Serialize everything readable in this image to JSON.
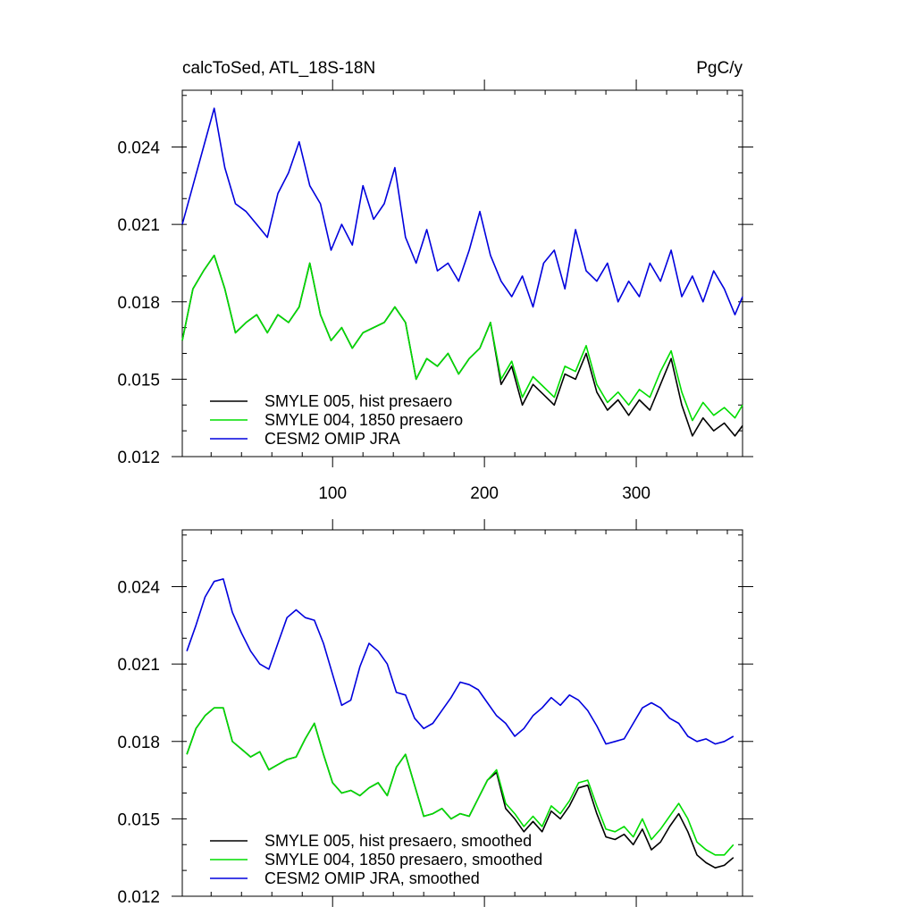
{
  "chart_data": [
    {
      "type": "line",
      "title_left": "calcToSed, ATL_18S-18N",
      "title_right": "PgC/y",
      "xlim": [
        1,
        370
      ],
      "ylim": [
        0.012,
        0.0262
      ],
      "xticks": [
        100,
        200,
        300
      ],
      "xtick_labels": [
        "100",
        "200",
        "300"
      ],
      "yticks": [
        0.012,
        0.015,
        0.018,
        0.021,
        0.024
      ],
      "ytick_labels": [
        "0.012",
        "0.015",
        "0.018",
        "0.021",
        "0.024"
      ],
      "legend_position": "bottom-left",
      "series": [
        {
          "name": "SMYLE 005, hist presaero",
          "color": "#000000",
          "x": [
            1,
            8,
            15,
            22,
            29,
            36,
            43,
            50,
            57,
            64,
            71,
            78,
            85,
            92,
            99,
            106,
            113,
            120,
            127,
            134,
            141,
            148,
            155,
            162,
            169,
            176,
            183,
            190,
            197,
            204,
            211,
            218,
            225,
            232,
            239,
            246,
            253,
            260,
            267,
            274,
            281,
            288,
            295,
            302,
            309,
            316,
            323,
            330,
            337,
            344,
            351,
            358,
            365,
            370
          ],
          "values": [
            0.0165,
            0.0185,
            0.0192,
            0.0198,
            0.0185,
            0.0168,
            0.0172,
            0.0175,
            0.0168,
            0.0175,
            0.0172,
            0.0178,
            0.0195,
            0.0175,
            0.0165,
            0.017,
            0.0162,
            0.0168,
            0.017,
            0.0172,
            0.0178,
            0.0172,
            0.015,
            0.0158,
            0.0155,
            0.016,
            0.0152,
            0.0158,
            0.0162,
            0.0172,
            0.0148,
            0.0155,
            0.014,
            0.0148,
            0.0144,
            0.014,
            0.0152,
            0.015,
            0.016,
            0.0145,
            0.0138,
            0.0142,
            0.0136,
            0.0142,
            0.0138,
            0.0148,
            0.0158,
            0.014,
            0.0128,
            0.0135,
            0.013,
            0.0133,
            0.0128,
            0.0132
          ]
        },
        {
          "name": "SMYLE 004, 1850 presaero",
          "color": "#00dd00",
          "x": [
            1,
            8,
            15,
            22,
            29,
            36,
            43,
            50,
            57,
            64,
            71,
            78,
            85,
            92,
            99,
            106,
            113,
            120,
            127,
            134,
            141,
            148,
            155,
            162,
            169,
            176,
            183,
            190,
            197,
            204,
            211,
            218,
            225,
            232,
            239,
            246,
            253,
            260,
            267,
            274,
            281,
            288,
            295,
            302,
            309,
            316,
            323,
            330,
            337,
            344,
            351,
            358,
            365,
            370
          ],
          "values": [
            0.0165,
            0.0185,
            0.0192,
            0.0198,
            0.0185,
            0.0168,
            0.0172,
            0.0175,
            0.0168,
            0.0175,
            0.0172,
            0.0178,
            0.0195,
            0.0175,
            0.0165,
            0.017,
            0.0162,
            0.0168,
            0.017,
            0.0172,
            0.0178,
            0.0172,
            0.015,
            0.0158,
            0.0155,
            0.016,
            0.0152,
            0.0158,
            0.0162,
            0.0172,
            0.015,
            0.0157,
            0.0143,
            0.0151,
            0.0147,
            0.0143,
            0.0155,
            0.0153,
            0.0163,
            0.0148,
            0.0141,
            0.0145,
            0.014,
            0.0146,
            0.0143,
            0.0153,
            0.0161,
            0.0145,
            0.0134,
            0.0141,
            0.0136,
            0.0139,
            0.0135,
            0.014
          ]
        },
        {
          "name": "CESM2 OMIP JRA",
          "color": "#0000dd",
          "x": [
            1,
            8,
            15,
            22,
            29,
            36,
            43,
            50,
            57,
            64,
            71,
            78,
            85,
            92,
            99,
            106,
            113,
            120,
            127,
            134,
            141,
            148,
            155,
            162,
            169,
            176,
            183,
            190,
            197,
            204,
            211,
            218,
            225,
            232,
            239,
            246,
            253,
            260,
            267,
            274,
            281,
            288,
            295,
            302,
            309,
            316,
            323,
            330,
            337,
            344,
            351,
            358,
            365,
            370
          ],
          "values": [
            0.021,
            0.0225,
            0.024,
            0.0255,
            0.0232,
            0.0218,
            0.0215,
            0.021,
            0.0205,
            0.0222,
            0.023,
            0.0242,
            0.0225,
            0.0218,
            0.02,
            0.021,
            0.0202,
            0.0225,
            0.0212,
            0.0218,
            0.0232,
            0.0205,
            0.0195,
            0.0208,
            0.0192,
            0.0195,
            0.0188,
            0.02,
            0.0215,
            0.0198,
            0.0188,
            0.0182,
            0.019,
            0.0178,
            0.0195,
            0.02,
            0.0185,
            0.0208,
            0.0192,
            0.0188,
            0.0195,
            0.018,
            0.0188,
            0.0182,
            0.0195,
            0.0188,
            0.02,
            0.0182,
            0.019,
            0.018,
            0.0192,
            0.0185,
            0.0175,
            0.0182
          ]
        }
      ]
    },
    {
      "type": "line",
      "xlim": [
        1,
        370
      ],
      "ylim": [
        0.012,
        0.0262
      ],
      "xticks": [
        100,
        200,
        300
      ],
      "yticks": [
        0.012,
        0.015,
        0.018,
        0.021,
        0.024
      ],
      "ytick_labels": [
        "0.012",
        "0.015",
        "0.018",
        "0.021",
        "0.024"
      ],
      "legend_position": "bottom-left",
      "series": [
        {
          "name": "SMYLE 005, hist presaero, smoothed",
          "color": "#000000",
          "x": [
            4,
            10,
            16,
            22,
            28,
            34,
            40,
            46,
            52,
            58,
            64,
            70,
            76,
            82,
            88,
            94,
            100,
            106,
            112,
            118,
            124,
            130,
            136,
            142,
            148,
            154,
            160,
            166,
            172,
            178,
            184,
            190,
            196,
            202,
            208,
            214,
            220,
            226,
            232,
            238,
            244,
            250,
            256,
            262,
            268,
            274,
            280,
            286,
            292,
            298,
            304,
            310,
            316,
            322,
            328,
            334,
            340,
            346,
            352,
            358,
            364
          ],
          "values": [
            0.0175,
            0.0185,
            0.019,
            0.0193,
            0.0193,
            0.018,
            0.0177,
            0.0174,
            0.0176,
            0.0169,
            0.0171,
            0.0173,
            0.0174,
            0.0181,
            0.0187,
            0.0175,
            0.0164,
            0.016,
            0.0161,
            0.0159,
            0.0162,
            0.0164,
            0.0159,
            0.017,
            0.0175,
            0.0163,
            0.0151,
            0.0152,
            0.0154,
            0.015,
            0.0152,
            0.0151,
            0.0158,
            0.0165,
            0.0168,
            0.0154,
            0.015,
            0.0145,
            0.0149,
            0.0145,
            0.0153,
            0.015,
            0.0155,
            0.0162,
            0.0163,
            0.0152,
            0.0143,
            0.0142,
            0.0144,
            0.014,
            0.0146,
            0.0138,
            0.0141,
            0.0147,
            0.0152,
            0.0145,
            0.0136,
            0.0133,
            0.0131,
            0.0132,
            0.0135
          ]
        },
        {
          "name": "SMYLE 004, 1850 presaero, smoothed",
          "color": "#00dd00",
          "x": [
            4,
            10,
            16,
            22,
            28,
            34,
            40,
            46,
            52,
            58,
            64,
            70,
            76,
            82,
            88,
            94,
            100,
            106,
            112,
            118,
            124,
            130,
            136,
            142,
            148,
            154,
            160,
            166,
            172,
            178,
            184,
            190,
            196,
            202,
            208,
            214,
            220,
            226,
            232,
            238,
            244,
            250,
            256,
            262,
            268,
            274,
            280,
            286,
            292,
            298,
            304,
            310,
            316,
            322,
            328,
            334,
            340,
            346,
            352,
            358,
            364
          ],
          "values": [
            0.0175,
            0.0185,
            0.019,
            0.0193,
            0.0193,
            0.018,
            0.0177,
            0.0174,
            0.0176,
            0.0169,
            0.0171,
            0.0173,
            0.0174,
            0.0181,
            0.0187,
            0.0175,
            0.0164,
            0.016,
            0.0161,
            0.0159,
            0.0162,
            0.0164,
            0.0159,
            0.017,
            0.0175,
            0.0163,
            0.0151,
            0.0152,
            0.0154,
            0.015,
            0.0152,
            0.0151,
            0.0158,
            0.0165,
            0.0169,
            0.0156,
            0.0152,
            0.0147,
            0.0151,
            0.0147,
            0.0155,
            0.0152,
            0.0157,
            0.0164,
            0.0165,
            0.0155,
            0.0146,
            0.0145,
            0.0147,
            0.0143,
            0.015,
            0.0142,
            0.0146,
            0.0151,
            0.0156,
            0.015,
            0.0141,
            0.0138,
            0.0136,
            0.0136,
            0.014
          ]
        },
        {
          "name": "CESM2 OMIP JRA, smoothed",
          "color": "#0000dd",
          "x": [
            4,
            10,
            16,
            22,
            28,
            34,
            40,
            46,
            52,
            58,
            64,
            70,
            76,
            82,
            88,
            94,
            100,
            106,
            112,
            118,
            124,
            130,
            136,
            142,
            148,
            154,
            160,
            166,
            172,
            178,
            184,
            190,
            196,
            202,
            208,
            214,
            220,
            226,
            232,
            238,
            244,
            250,
            256,
            262,
            268,
            274,
            280,
            286,
            292,
            298,
            304,
            310,
            316,
            322,
            328,
            334,
            340,
            346,
            352,
            358,
            364
          ],
          "values": [
            0.0215,
            0.0225,
            0.0236,
            0.0242,
            0.0243,
            0.023,
            0.0222,
            0.0215,
            0.021,
            0.0208,
            0.0218,
            0.0228,
            0.0231,
            0.0228,
            0.0227,
            0.0218,
            0.0206,
            0.0194,
            0.0196,
            0.0209,
            0.0218,
            0.0215,
            0.021,
            0.0199,
            0.0198,
            0.0189,
            0.0185,
            0.0187,
            0.0192,
            0.0197,
            0.0203,
            0.0202,
            0.02,
            0.0195,
            0.019,
            0.0187,
            0.0182,
            0.0185,
            0.019,
            0.0193,
            0.0197,
            0.0194,
            0.0198,
            0.0196,
            0.0192,
            0.0186,
            0.0179,
            0.018,
            0.0181,
            0.0187,
            0.0193,
            0.0195,
            0.0193,
            0.0189,
            0.0187,
            0.0182,
            0.018,
            0.0181,
            0.0179,
            0.018,
            0.0182
          ]
        }
      ]
    }
  ]
}
